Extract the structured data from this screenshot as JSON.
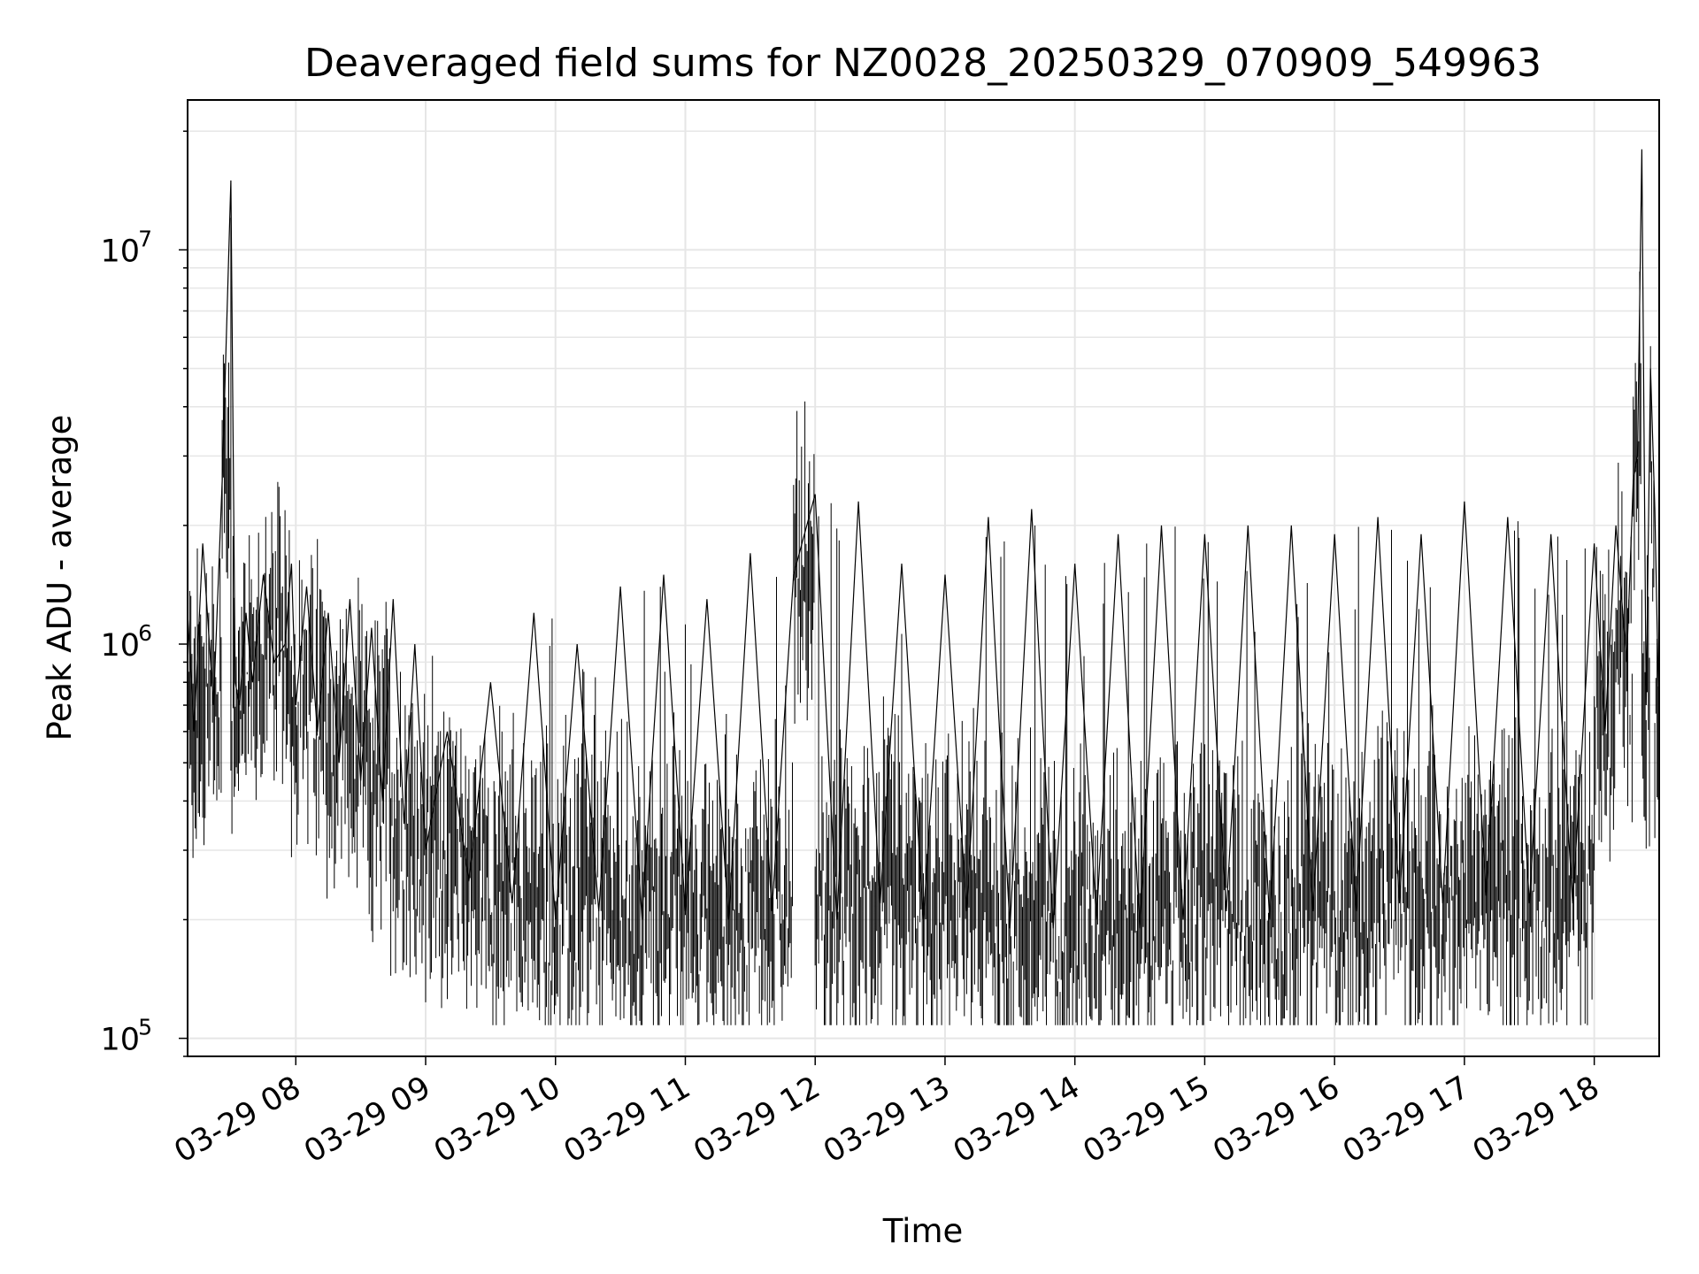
{
  "chart_data": {
    "type": "line",
    "title": "Deaveraged field sums for NZ0028_20250329_070909_549963",
    "xlabel": "Time",
    "ylabel": "Peak ADU - average",
    "yscale": "log",
    "ylim": [
      90000,
      24000000
    ],
    "xlim": [
      "2025-03-29 07:10",
      "2025-03-29 18:30"
    ],
    "grid": true,
    "line_color": "#000000",
    "grid_color": "#e6e6e6",
    "x_tick_labels": [
      "03-29 08",
      "03-29 09",
      "03-29 10",
      "03-29 11",
      "03-29 12",
      "03-29 13",
      "03-29 14",
      "03-29 15",
      "03-29 16",
      "03-29 17",
      "03-29 18"
    ],
    "y_ticks": [
      {
        "base": "10",
        "exp": "5",
        "value": 100000
      },
      {
        "base": "10",
        "exp": "6",
        "value": 1000000
      },
      {
        "base": "10",
        "exp": "7",
        "value": 10000000
      }
    ],
    "series": [
      {
        "x": [
          "2025-03-29 07:10",
          "2025-03-29 07:13",
          "2025-03-29 07:17",
          "2025-03-29 07:22",
          "2025-03-29 07:26",
          "2025-03-29 07:30",
          "2025-03-29 07:32",
          "2025-03-29 07:34",
          "2025-03-29 07:37",
          "2025-03-29 07:40",
          "2025-03-29 07:45",
          "2025-03-29 07:50",
          "2025-03-29 07:55",
          "2025-03-29 07:58",
          "2025-03-29 08:00",
          "2025-03-29 08:05",
          "2025-03-29 08:10",
          "2025-03-29 08:15",
          "2025-03-29 08:20",
          "2025-03-29 08:25",
          "2025-03-29 08:30",
          "2025-03-29 08:35",
          "2025-03-29 08:40",
          "2025-03-29 08:45",
          "2025-03-29 08:50",
          "2025-03-29 08:55",
          "2025-03-29 09:00",
          "2025-03-29 09:10",
          "2025-03-29 09:20",
          "2025-03-29 09:30",
          "2025-03-29 09:40",
          "2025-03-29 09:50",
          "2025-03-29 10:00",
          "2025-03-29 10:10",
          "2025-03-29 10:20",
          "2025-03-29 10:30",
          "2025-03-29 10:40",
          "2025-03-29 10:50",
          "2025-03-29 11:00",
          "2025-03-29 11:10",
          "2025-03-29 11:20",
          "2025-03-29 11:30",
          "2025-03-29 11:40",
          "2025-03-29 11:50",
          "2025-03-29 12:00",
          "2025-03-29 12:10",
          "2025-03-29 12:20",
          "2025-03-29 12:30",
          "2025-03-29 12:40",
          "2025-03-29 12:50",
          "2025-03-29 13:00",
          "2025-03-29 13:10",
          "2025-03-29 13:20",
          "2025-03-29 13:30",
          "2025-03-29 13:40",
          "2025-03-29 13:50",
          "2025-03-29 14:00",
          "2025-03-29 14:10",
          "2025-03-29 14:20",
          "2025-03-29 14:30",
          "2025-03-29 14:40",
          "2025-03-29 14:50",
          "2025-03-29 15:00",
          "2025-03-29 15:10",
          "2025-03-29 15:20",
          "2025-03-29 15:30",
          "2025-03-29 15:40",
          "2025-03-29 15:50",
          "2025-03-29 16:00",
          "2025-03-29 16:10",
          "2025-03-29 16:20",
          "2025-03-29 16:30",
          "2025-03-29 16:40",
          "2025-03-29 16:50",
          "2025-03-29 17:00",
          "2025-03-29 17:10",
          "2025-03-29 17:20",
          "2025-03-29 17:30",
          "2025-03-29 17:40",
          "2025-03-29 17:50",
          "2025-03-29 18:00",
          "2025-03-29 18:05",
          "2025-03-29 18:10",
          "2025-03-29 18:15",
          "2025-03-29 18:18",
          "2025-03-29 18:20",
          "2025-03-29 18:22",
          "2025-03-29 18:24",
          "2025-03-29 18:26",
          "2025-03-29 18:28",
          "2025-03-29 18:30"
        ],
        "y": [
          1200000,
          600000,
          1800000,
          700000,
          2600000,
          15000000,
          800000,
          700000,
          1200000,
          800000,
          1500000,
          900000,
          1000000,
          1600000,
          700000,
          1400000,
          600000,
          1200000,
          500000,
          1300000,
          450000,
          1100000,
          400000,
          1300000,
          350000,
          1000000,
          300000,
          600000,
          250000,
          800000,
          220000,
          1200000,
          200000,
          1000000,
          210000,
          1400000,
          200000,
          1500000,
          210000,
          1300000,
          200000,
          1700000,
          210000,
          1500000,
          2400000,
          200000,
          2300000,
          220000,
          1600000,
          200000,
          1500000,
          210000,
          2100000,
          190000,
          2200000,
          190000,
          1600000,
          200000,
          1900000,
          190000,
          2000000,
          200000,
          1900000,
          210000,
          2000000,
          200000,
          2000000,
          210000,
          1900000,
          210000,
          2100000,
          220000,
          1900000,
          220000,
          2300000,
          230000,
          2100000,
          220000,
          1900000,
          220000,
          1800000,
          600000,
          2000000,
          900000,
          2600000,
          3000000,
          18000000,
          700000,
          5000000,
          2200000,
          600000
        ]
      }
    ]
  }
}
